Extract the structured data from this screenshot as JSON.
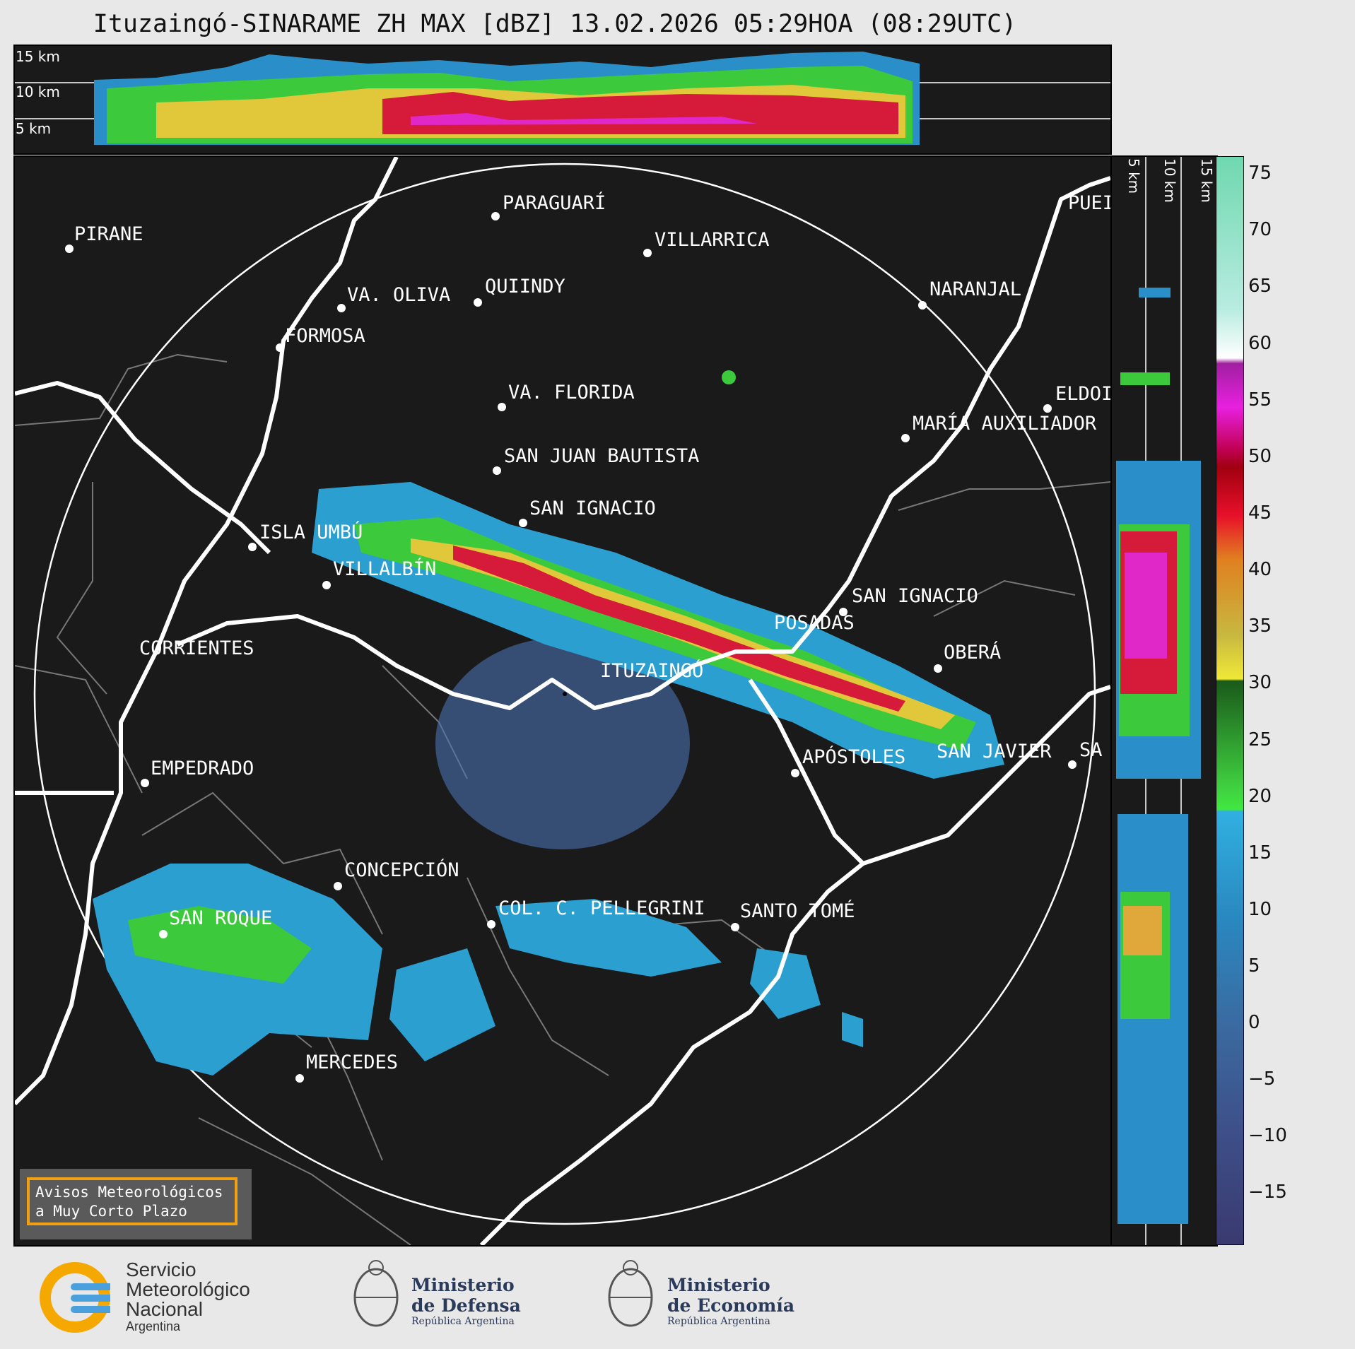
{
  "title": "Ituzaingó-SINARAME ZH MAX [dBZ] 13.02.2026 05:29HOA (08:29UTC)",
  "height_labels": [
    "15 km",
    "10 km",
    "5 km"
  ],
  "colorbar": {
    "ticks": [
      "75",
      "70",
      "65",
      "60",
      "55",
      "50",
      "45",
      "40",
      "35",
      "30",
      "25",
      "20",
      "15",
      "10",
      "5",
      "0",
      "−5",
      "−10",
      "−15"
    ]
  },
  "cities": [
    {
      "name": "PIRANE"
    },
    {
      "name": "PARAGUARÍ"
    },
    {
      "name": "VILLARRICA"
    },
    {
      "name": "VA. OLIVA"
    },
    {
      "name": "QUIINDY"
    },
    {
      "name": "FORMOSA"
    },
    {
      "name": "NARANJAL"
    },
    {
      "name": "PUEI"
    },
    {
      "name": "VA. FLORIDA"
    },
    {
      "name": "ELDOI"
    },
    {
      "name": "MARÍA AUXILIADOR"
    },
    {
      "name": "SAN JUAN BAUTISTA"
    },
    {
      "name": "SAN IGNACIO"
    },
    {
      "name": "ISLA UMBÚ"
    },
    {
      "name": "VILLALBÍN"
    },
    {
      "name": "SAN IGNACIO"
    },
    {
      "name": "POSADAS"
    },
    {
      "name": "CORRIENTES"
    },
    {
      "name": "ITUZAINGÓ"
    },
    {
      "name": "OBERÁ"
    },
    {
      "name": "EMPEDRADO"
    },
    {
      "name": "APÓSTOLES"
    },
    {
      "name": "SAN JAVIER"
    },
    {
      "name": "SA"
    },
    {
      "name": "CONCEPCIÓN"
    },
    {
      "name": "COL. C. PELLEGRINI"
    },
    {
      "name": "SANTO TOMÉ"
    },
    {
      "name": "SAN ROQUE"
    },
    {
      "name": "MERCEDES"
    }
  ],
  "aviso": {
    "line1": "Avisos Meteorológicos",
    "line2": "a Muy Corto Plazo"
  },
  "logos": {
    "smn": [
      "Servicio",
      "Meteorológico",
      "Nacional",
      "Argentina"
    ],
    "defensa": [
      "Ministerio",
      "de Defensa",
      "República Argentina"
    ],
    "economia": [
      "Ministerio",
      "de Economía",
      "República Argentina"
    ]
  }
}
